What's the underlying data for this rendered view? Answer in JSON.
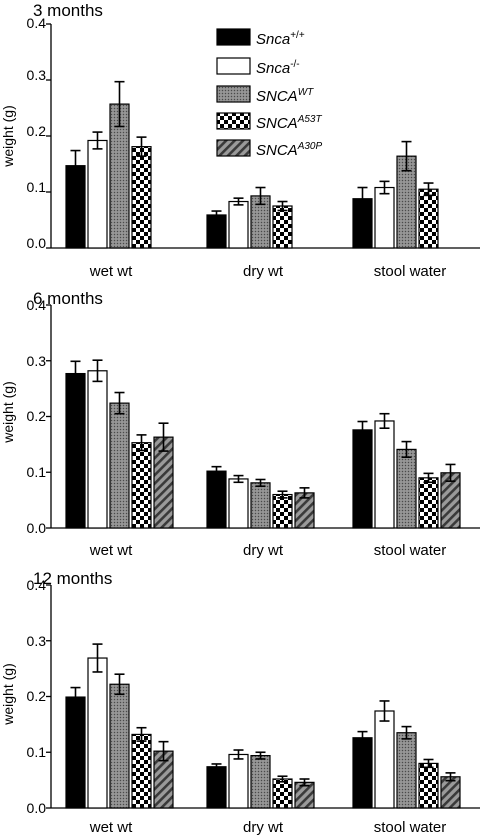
{
  "figure": {
    "legend": [
      {
        "base": "Snca",
        "sup": "+/+",
        "italic_base": true,
        "fill": "black"
      },
      {
        "base": "Snca",
        "sup": "-/-",
        "italic_base": true,
        "fill": "white"
      },
      {
        "base": "SNCA",
        "sup": "WT",
        "italic_base": true,
        "fill": "dots"
      },
      {
        "base": "SNCA",
        "sup": "A53T",
        "italic_base": true,
        "fill": "checker"
      },
      {
        "base": "SNCA",
        "sup": "A30P",
        "italic_base": true,
        "fill": "hatch"
      }
    ],
    "colors": {
      "black": "#000000",
      "white": "#ffffff",
      "dots": "#8a8a8a",
      "hatch": "#8c8c8c"
    }
  },
  "chart_data": [
    {
      "type": "bar",
      "title": "3 months",
      "ylabel": "weight (g)",
      "ylim": [
        0,
        0.4
      ],
      "yticks": [
        "0.0",
        "0.1",
        "0.2",
        "0.3",
        "0.4"
      ],
      "categories": [
        "wet wt",
        "dry wt",
        "stool water"
      ],
      "series": [
        {
          "name": "Snca+/+",
          "values": [
            0.147,
            0.059,
            0.088
          ],
          "errors": [
            0.027,
            0.007,
            0.02
          ]
        },
        {
          "name": "Snca-/-",
          "values": [
            0.192,
            0.083,
            0.108
          ],
          "errors": [
            0.015,
            0.006,
            0.011
          ]
        },
        {
          "name": "SNCA WT",
          "values": [
            0.257,
            0.093,
            0.164
          ],
          "errors": [
            0.04,
            0.015,
            0.026
          ]
        },
        {
          "name": "SNCA A53T",
          "values": [
            0.181,
            0.075,
            0.105
          ],
          "errors": [
            0.017,
            0.008,
            0.011
          ]
        },
        {
          "name": "SNCA A30P",
          "values": [
            null,
            null,
            null
          ],
          "errors": [
            null,
            null,
            null
          ]
        }
      ]
    },
    {
      "type": "bar",
      "title": "6 months",
      "ylabel": "weight (g)",
      "ylim": [
        0,
        0.4
      ],
      "yticks": [
        "0.0",
        "0.1",
        "0.2",
        "0.3",
        "0.4"
      ],
      "categories": [
        "wet wt",
        "dry wt",
        "stool water"
      ],
      "series": [
        {
          "name": "Snca+/+",
          "values": [
            0.277,
            0.102,
            0.176
          ],
          "errors": [
            0.022,
            0.008,
            0.015
          ]
        },
        {
          "name": "Snca-/-",
          "values": [
            0.282,
            0.088,
            0.192
          ],
          "errors": [
            0.019,
            0.006,
            0.013
          ]
        },
        {
          "name": "SNCA WT",
          "values": [
            0.224,
            0.081,
            0.141
          ],
          "errors": [
            0.019,
            0.006,
            0.014
          ]
        },
        {
          "name": "SNCA A53T",
          "values": [
            0.153,
            0.06,
            0.09
          ],
          "errors": [
            0.014,
            0.006,
            0.008
          ]
        },
        {
          "name": "SNCA A30P",
          "values": [
            0.163,
            0.063,
            0.099
          ],
          "errors": [
            0.025,
            0.009,
            0.015
          ]
        }
      ]
    },
    {
      "type": "bar",
      "title": "12 months",
      "ylabel": "weight (g)",
      "ylim": [
        0,
        0.4
      ],
      "yticks": [
        "0.0",
        "0.1",
        "0.2",
        "0.3",
        "0.4"
      ],
      "categories": [
        "wet wt",
        "dry wt",
        "stool water"
      ],
      "series": [
        {
          "name": "Snca+/+",
          "values": [
            0.199,
            0.074,
            0.126
          ],
          "errors": [
            0.017,
            0.005,
            0.011
          ]
        },
        {
          "name": "Snca-/-",
          "values": [
            0.269,
            0.096,
            0.174
          ],
          "errors": [
            0.025,
            0.008,
            0.018
          ]
        },
        {
          "name": "SNCA WT",
          "values": [
            0.222,
            0.094,
            0.135
          ],
          "errors": [
            0.018,
            0.006,
            0.011
          ]
        },
        {
          "name": "SNCA A53T",
          "values": [
            0.132,
            0.052,
            0.08
          ],
          "errors": [
            0.012,
            0.005,
            0.007
          ]
        },
        {
          "name": "SNCA A30P",
          "values": [
            0.102,
            0.046,
            0.056
          ],
          "errors": [
            0.017,
            0.006,
            0.007
          ]
        }
      ]
    }
  ]
}
